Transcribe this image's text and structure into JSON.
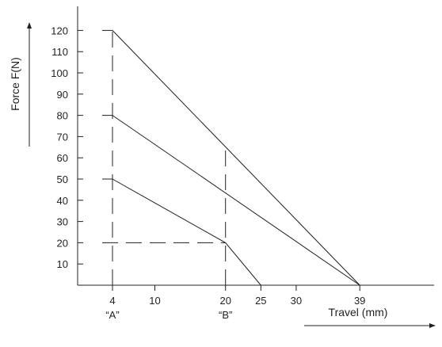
{
  "chart_data": {
    "type": "line",
    "xlabel": "Travel (mm)",
    "ylabel": "Force F(N)",
    "x_ticks": [
      4,
      10,
      20,
      25,
      30,
      39
    ],
    "y_ticks": [
      10,
      20,
      30,
      40,
      50,
      60,
      70,
      80,
      90,
      100,
      110,
      120
    ],
    "xlim": [
      0,
      40
    ],
    "ylim": [
      0,
      130
    ],
    "grid": false,
    "series": [
      {
        "points": [
          [
            4,
            120
          ],
          [
            39,
            0
          ]
        ]
      },
      {
        "points": [
          [
            4,
            80
          ],
          [
            39,
            0
          ]
        ]
      },
      {
        "points": [
          [
            4,
            50
          ],
          [
            20,
            20
          ],
          [
            25,
            0
          ]
        ]
      }
    ],
    "guides": [
      {
        "x": 4,
        "y_from": 0,
        "y_to": 120
      },
      {
        "x": 20,
        "y_from": 0,
        "y_to": 66
      },
      {
        "y": 20,
        "x_from": 0,
        "x_to": 20
      }
    ],
    "annotations": [
      {
        "text": "“A”",
        "x": 4
      },
      {
        "text": "“B”",
        "x": 20
      }
    ]
  }
}
